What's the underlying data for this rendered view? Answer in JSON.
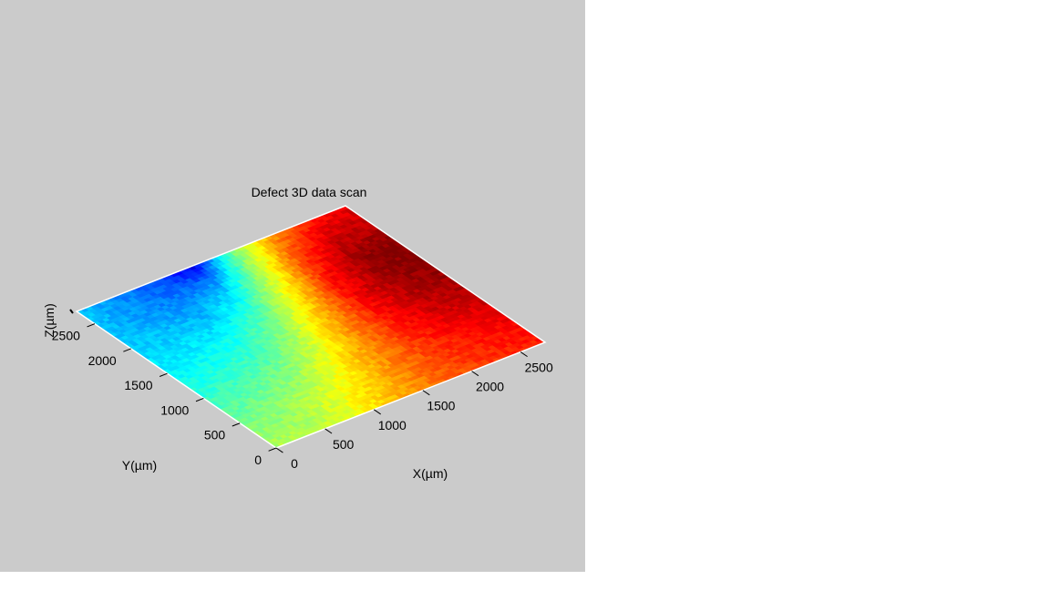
{
  "chart_data": {
    "type": "surface",
    "title": "Defect 3D data scan",
    "xlabel": "X(µm)",
    "ylabel": "Y(µm)",
    "zlabel": "Z(µm)",
    "xlim": [
      0,
      2750
    ],
    "ylim": [
      0,
      2750
    ],
    "xticks": [
      0,
      500,
      1000,
      1500,
      2000,
      2500
    ],
    "yticks": [
      0,
      500,
      1000,
      1500,
      2000,
      2500
    ],
    "xtick_labels": [
      "0",
      "500",
      "1000",
      "1500",
      "2000",
      "2500"
    ],
    "ytick_labels": [
      "0",
      "500",
      "1000",
      "1500",
      "2000",
      "2500"
    ],
    "colormap": "jet",
    "colors": {
      "background": "#cbcbcb",
      "low": "#00007f",
      "mid_low": "#00bfff",
      "mid": "#ffff00",
      "mid_high": "#ff7f00",
      "high": "#7f0000"
    },
    "surface_height_grid": {
      "description_axes": [
        "y_rows_0_to_2750",
        "x_cols_0_to_2750"
      ],
      "values": [
        [
          0.55,
          0.55,
          0.6,
          0.68,
          0.75,
          0.8,
          0.83,
          0.85
        ],
        [
          0.5,
          0.52,
          0.58,
          0.66,
          0.75,
          0.82,
          0.86,
          0.88
        ],
        [
          0.45,
          0.48,
          0.52,
          0.62,
          0.74,
          0.84,
          0.9,
          0.92
        ],
        [
          0.4,
          0.42,
          0.46,
          0.56,
          0.72,
          0.86,
          0.94,
          0.96
        ],
        [
          0.36,
          0.37,
          0.4,
          0.5,
          0.68,
          0.88,
          0.97,
          0.99
        ],
        [
          0.33,
          0.32,
          0.32,
          0.42,
          0.62,
          0.86,
          0.98,
          1.0
        ],
        [
          0.32,
          0.28,
          0.25,
          0.3,
          0.55,
          0.8,
          0.93,
          0.95
        ],
        [
          0.32,
          0.26,
          0.2,
          0.1,
          0.48,
          0.72,
          0.85,
          0.9
        ]
      ]
    }
  }
}
